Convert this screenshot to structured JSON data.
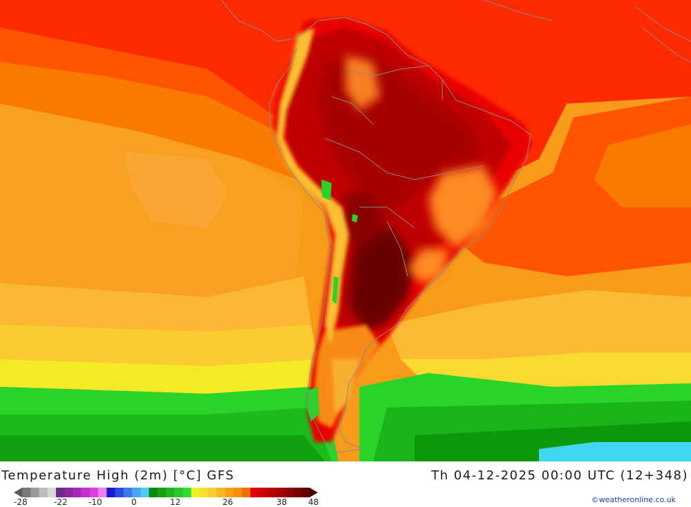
{
  "map": {
    "title": "Temperature High (2m) [°C] GFS",
    "datetime": "Th 04-12-2025 00:00 UTC (12+348)",
    "credit": "©weatheronline.co.uk",
    "region": "South America"
  },
  "legend": {
    "tick_labels": [
      "-28",
      "-22",
      "-10",
      "0",
      "12",
      "26",
      "38",
      "48"
    ],
    "colors": [
      "#5a5a5a",
      "#7a7a7a",
      "#9b9b9b",
      "#bdbdbd",
      "#d8d8d8",
      "#6a2a8a",
      "#8a2aa0",
      "#a62ab8",
      "#c830cc",
      "#e040e0",
      "#f27cf2",
      "#1a1acc",
      "#2a4ae0",
      "#3c78f0",
      "#4aa4f4",
      "#50ccf8",
      "#0a8a0a",
      "#14a014",
      "#1eb41e",
      "#28c828",
      "#32dc32",
      "#f0f020",
      "#f8e030",
      "#f8cc30",
      "#f8b820",
      "#f8a010",
      "#f88c00",
      "#f07000",
      "#e00000",
      "#cc0000",
      "#b80000",
      "#a40000",
      "#900000",
      "#7a0000",
      "#640000",
      "#4a0000"
    ]
  }
}
